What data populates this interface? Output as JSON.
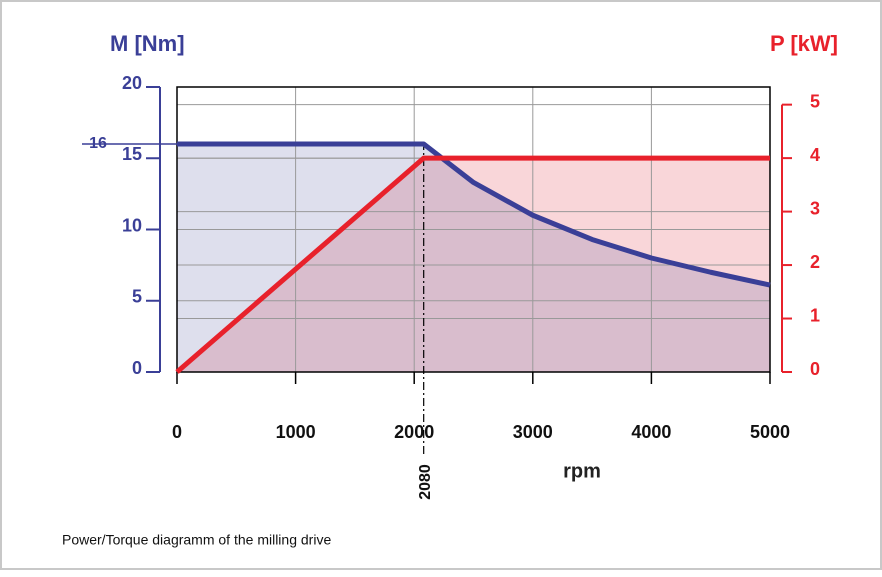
{
  "chart_data": {
    "type": "line",
    "ylabel": "M [Nm]",
    "y2label": "P [kW]",
    "xlabel": "rpm",
    "caption": "Power/Torque diagramm of the milling drive",
    "xlim": [
      0,
      5000
    ],
    "xticks": [
      0,
      1000,
      2000,
      3000,
      4000,
      5000
    ],
    "ylim": [
      0,
      20
    ],
    "yticks": [
      0,
      5,
      10,
      15,
      20
    ],
    "y2lim": [
      0,
      5.33
    ],
    "y2ticks": [
      0,
      1,
      2,
      3,
      4,
      5
    ],
    "grid": true,
    "markers": {
      "y": 16,
      "x": 2080
    },
    "series": [
      {
        "name": "M",
        "color": "#3a3f97",
        "fill": "rgba(58,63,151,0.17)",
        "x": [
          0,
          2080,
          2500,
          3000,
          3500,
          4000,
          4500,
          5000
        ],
        "values": [
          16,
          16,
          13.3,
          11.0,
          9.3,
          8.0,
          7.0,
          6.1
        ]
      },
      {
        "name": "P",
        "color": "#e8212b",
        "fill": "#f9d6d9",
        "axis": "y2",
        "x": [
          0,
          2080,
          5000
        ],
        "values": [
          0,
          4,
          4
        ]
      }
    ]
  }
}
